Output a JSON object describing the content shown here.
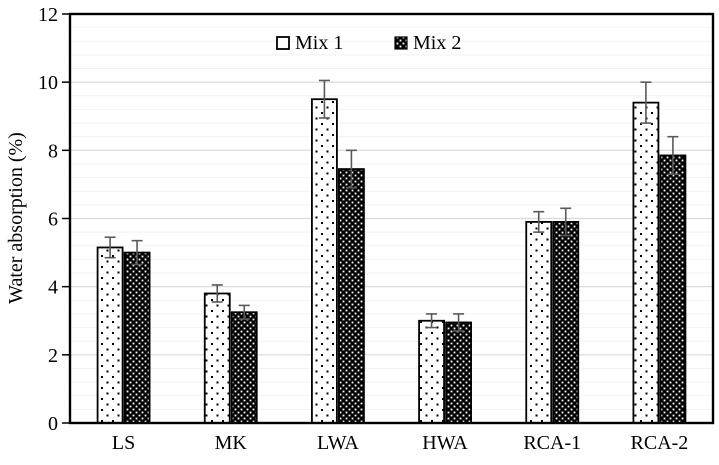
{
  "chart_data": {
    "type": "bar",
    "title": "",
    "xlabel": "",
    "ylabel": "Water absorption (%)",
    "categories": [
      "LS",
      "MK",
      "LWA",
      "HWA",
      "RCA-1",
      "RCA-2"
    ],
    "series": [
      {
        "name": "Mix 1",
        "pattern": "dots",
        "values": [
          5.15,
          3.8,
          9.5,
          3.0,
          5.9,
          9.4
        ],
        "errors": [
          0.3,
          0.25,
          0.55,
          0.2,
          0.3,
          0.6
        ]
      },
      {
        "name": "Mix 2",
        "pattern": "diamond",
        "values": [
          5.0,
          3.25,
          7.45,
          2.95,
          5.9,
          7.85
        ],
        "errors": [
          0.35,
          0.2,
          0.55,
          0.25,
          0.4,
          0.55
        ]
      }
    ],
    "ylim": [
      0,
      12
    ],
    "y_ticks": [
      0,
      2,
      4,
      6,
      8,
      10,
      12
    ],
    "y_major_unit": 2,
    "y_minor_unit": 0.4,
    "grid": "horizontal major+minor",
    "legend_position": "top-center-inside",
    "error_bars": "both-directions-with-caps"
  },
  "colors": {
    "background": "#ffffff",
    "axis": "#000000",
    "bar_border": "#000000",
    "major_grid": "#d9d9d9",
    "minor_grid": "#f2f2f2",
    "error_bar": "#595959",
    "text": "#000000"
  }
}
